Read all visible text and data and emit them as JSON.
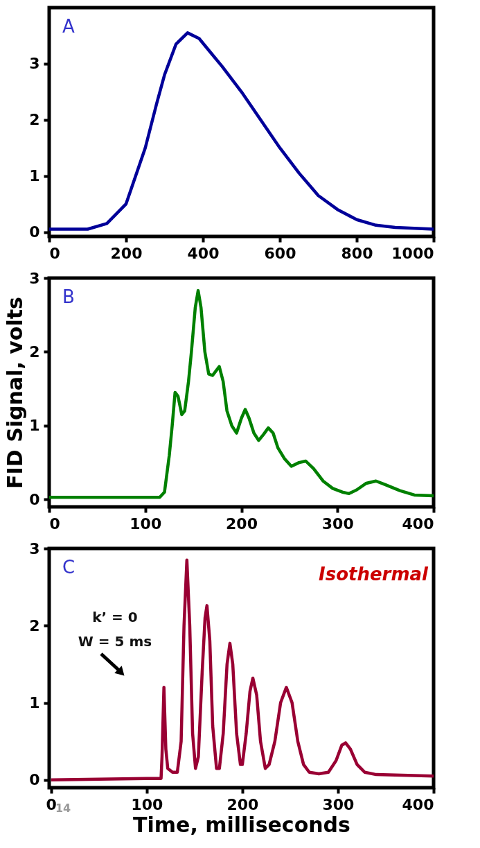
{
  "chart_data": [
    {
      "type": "line",
      "xlim": [
        0,
        1000
      ],
      "xticks": [
        0,
        200,
        400,
        600,
        800,
        1000
      ],
      "ylim": [
        -0.08,
        4.0
      ],
      "yticks": [
        0,
        1,
        2,
        3
      ],
      "grid": false,
      "annotations": [
        "A"
      ],
      "x": [
        0,
        100,
        150,
        200,
        250,
        280,
        300,
        330,
        360,
        390,
        420,
        450,
        500,
        550,
        600,
        650,
        700,
        750,
        800,
        850,
        900,
        1000
      ],
      "series": [
        {
          "color": "#000099",
          "values": [
            0.05,
            0.05,
            0.15,
            0.5,
            1.5,
            2.3,
            2.8,
            3.35,
            3.55,
            3.45,
            3.2,
            2.95,
            2.5,
            2.0,
            1.5,
            1.05,
            0.65,
            0.4,
            0.22,
            0.12,
            0.08,
            0.05
          ]
        }
      ]
    },
    {
      "type": "line",
      "xlim": [
        0,
        400
      ],
      "xticks": [
        0,
        100,
        200,
        300,
        400
      ],
      "ylim": [
        -0.1,
        3.0
      ],
      "yticks": [
        0,
        1,
        2,
        3
      ],
      "grid": false,
      "ylabel": "FID Signal, volts",
      "annotations": [
        "B"
      ],
      "x": [
        0,
        115,
        120,
        125,
        128,
        131,
        134,
        138,
        141,
        145,
        148,
        152,
        155,
        158,
        162,
        166,
        170,
        174,
        177,
        181,
        185,
        190,
        195,
        200,
        204,
        208,
        213,
        218,
        223,
        228,
        233,
        238,
        245,
        252,
        260,
        267,
        275,
        285,
        295,
        305,
        312,
        320,
        330,
        340,
        350,
        365,
        380,
        400
      ],
      "series": [
        {
          "color": "#008000",
          "values": [
            0.03,
            0.03,
            0.1,
            0.6,
            1.0,
            1.45,
            1.4,
            1.15,
            1.2,
            1.6,
            2.0,
            2.6,
            2.83,
            2.6,
            2.0,
            1.7,
            1.68,
            1.75,
            1.8,
            1.6,
            1.2,
            1.0,
            0.9,
            1.1,
            1.22,
            1.1,
            0.9,
            0.8,
            0.88,
            0.97,
            0.9,
            0.7,
            0.55,
            0.45,
            0.5,
            0.52,
            0.42,
            0.25,
            0.15,
            0.1,
            0.08,
            0.13,
            0.22,
            0.25,
            0.2,
            0.12,
            0.06,
            0.05
          ]
        }
      ]
    },
    {
      "type": "line",
      "xlim": [
        -2,
        400
      ],
      "xticks": [
        0,
        100,
        200,
        300,
        400
      ],
      "ylim": [
        -0.1,
        3.0
      ],
      "yticks": [
        0,
        1,
        2,
        3
      ],
      "grid": false,
      "xlabel": "Time, milliseconds",
      "annotations": [
        "C",
        "Isothermal",
        "k’ = 0",
        "W = 5 ms",
        "14"
      ],
      "x": [
        0,
        100,
        115,
        116,
        118,
        120,
        122,
        127,
        132,
        136,
        139,
        142,
        145,
        148,
        151,
        154,
        158,
        161,
        163,
        166,
        169,
        173,
        176,
        180,
        184,
        187,
        190,
        194,
        198,
        200,
        204,
        208,
        211,
        215,
        219,
        224,
        228,
        234,
        240,
        246,
        252,
        258,
        264,
        270,
        280,
        290,
        298,
        304,
        308,
        313,
        320,
        328,
        340,
        400
      ],
      "series": [
        {
          "color": "#990033",
          "values": [
            0.0,
            0.02,
            0.02,
            0.3,
            1.2,
            0.4,
            0.15,
            0.1,
            0.1,
            0.5,
            2.0,
            2.85,
            2.0,
            0.6,
            0.15,
            0.3,
            1.4,
            2.1,
            2.26,
            1.8,
            0.7,
            0.15,
            0.15,
            0.6,
            1.5,
            1.77,
            1.5,
            0.6,
            0.2,
            0.2,
            0.6,
            1.15,
            1.32,
            1.1,
            0.5,
            0.15,
            0.2,
            0.5,
            1.0,
            1.2,
            1.0,
            0.5,
            0.2,
            0.1,
            0.08,
            0.1,
            0.25,
            0.45,
            0.48,
            0.4,
            0.2,
            0.1,
            0.07,
            0.05
          ]
        }
      ]
    }
  ]
}
